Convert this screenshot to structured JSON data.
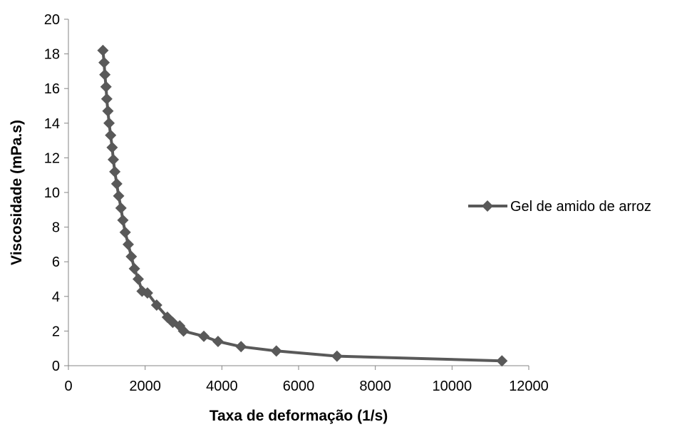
{
  "chart_data": {
    "type": "line",
    "title": "",
    "xlabel": "Taxa de deformação (1/s)",
    "ylabel": "Viscosidade  (mPa.s)",
    "xlim": [
      0,
      12000
    ],
    "ylim": [
      0,
      20
    ],
    "x_ticks": [
      0,
      2000,
      4000,
      6000,
      8000,
      10000,
      12000
    ],
    "y_ticks": [
      0,
      2,
      4,
      6,
      8,
      10,
      12,
      14,
      16,
      18,
      20
    ],
    "x_tick_labels": [
      "0",
      "2000",
      "4000",
      "6000",
      "8000",
      "10000",
      "12000"
    ],
    "y_tick_labels": [
      "0",
      "2",
      "4",
      "6",
      "8",
      "10",
      "12",
      "14",
      "16",
      "18",
      "20"
    ],
    "grid": false,
    "legend_position": "right",
    "series": [
      {
        "name": "Gel de amido de arroz",
        "color": "#595959",
        "marker": "diamond",
        "x": [
          900,
          930,
          950,
          980,
          1000,
          1030,
          1060,
          1100,
          1140,
          1170,
          1210,
          1260,
          1310,
          1370,
          1420,
          1480,
          1560,
          1640,
          1720,
          1820,
          1920,
          2060,
          2300,
          2580,
          2720,
          2900,
          3000,
          3530,
          3900,
          4500,
          5420,
          7000,
          11300
        ],
        "y": [
          18.2,
          17.5,
          16.8,
          16.1,
          15.4,
          14.7,
          14.0,
          13.3,
          12.6,
          11.9,
          11.2,
          10.5,
          9.8,
          9.1,
          8.4,
          7.7,
          7.0,
          6.3,
          5.6,
          5.0,
          4.3,
          4.2,
          3.5,
          2.8,
          2.5,
          2.3,
          2.0,
          1.7,
          1.4,
          1.1,
          0.85,
          0.55,
          0.28
        ]
      }
    ]
  }
}
